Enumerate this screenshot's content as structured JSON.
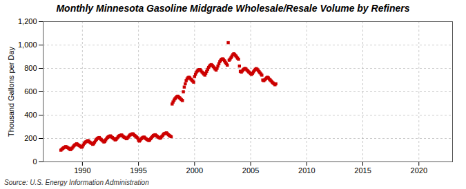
{
  "chart_data": {
    "type": "scatter",
    "title": "Monthly Minnesota Gasoline Midgrade Wholesale/Resale Volume by Refiners",
    "ylabel": "Thousand Gallons per Day",
    "source": "Source: U.S. Energy Information Administration",
    "color": "#cc0000",
    "marker": "square",
    "grid": true,
    "xlim": [
      1986.5,
      2023
    ],
    "ylim": [
      0,
      1200
    ],
    "xticks": [
      1990,
      1995,
      2000,
      2005,
      2010,
      2015,
      2020
    ],
    "yticks": [
      0,
      200,
      400,
      600,
      800,
      {
        "value": 1000,
        "label": "1,000"
      },
      {
        "value": 1200,
        "label": "1,200"
      }
    ],
    "x": [
      1988.08,
      1988.17,
      1988.25,
      1988.33,
      1988.42,
      1988.5,
      1988.58,
      1988.67,
      1988.75,
      1988.83,
      1988.92,
      1989.0,
      1989.08,
      1989.17,
      1989.25,
      1989.33,
      1989.42,
      1989.5,
      1989.58,
      1989.67,
      1989.75,
      1989.83,
      1989.92,
      1990.0,
      1990.08,
      1990.17,
      1990.25,
      1990.33,
      1990.42,
      1990.5,
      1990.58,
      1990.67,
      1990.75,
      1990.83,
      1990.92,
      1991.0,
      1991.08,
      1991.17,
      1991.25,
      1991.33,
      1991.42,
      1991.5,
      1991.58,
      1991.67,
      1991.75,
      1991.83,
      1991.92,
      1992.0,
      1992.08,
      1992.17,
      1992.25,
      1992.33,
      1992.42,
      1992.5,
      1992.58,
      1992.67,
      1992.75,
      1992.83,
      1992.92,
      1993.0,
      1993.08,
      1993.17,
      1993.25,
      1993.33,
      1993.42,
      1993.5,
      1993.58,
      1993.67,
      1993.75,
      1993.83,
      1993.92,
      1994.0,
      1994.08,
      1994.17,
      1994.25,
      1994.33,
      1994.42,
      1994.5,
      1994.58,
      1994.67,
      1994.75,
      1994.83,
      1994.92,
      1995.0,
      1995.08,
      1995.17,
      1995.25,
      1995.33,
      1995.42,
      1995.5,
      1995.58,
      1995.67,
      1995.75,
      1995.83,
      1995.92,
      1996.0,
      1996.08,
      1996.17,
      1996.25,
      1996.33,
      1996.42,
      1996.5,
      1996.58,
      1996.67,
      1996.75,
      1996.83,
      1996.92,
      1997.0,
      1997.08,
      1997.17,
      1997.25,
      1997.33,
      1997.42,
      1997.5,
      1997.58,
      1997.67,
      1997.75,
      1997.83,
      1997.92,
      1998.0,
      1998.08,
      1998.17,
      1998.25,
      1998.33,
      1998.42,
      1998.5,
      1998.58,
      1998.67,
      1998.75,
      1998.83,
      1998.92,
      1999.0,
      1999.08,
      1999.17,
      1999.25,
      1999.33,
      1999.42,
      1999.5,
      1999.58,
      1999.67,
      1999.75,
      1999.83,
      1999.92,
      2000.0,
      2000.08,
      2000.17,
      2000.25,
      2000.33,
      2000.42,
      2000.5,
      2000.58,
      2000.67,
      2000.75,
      2000.83,
      2000.92,
      2001.0,
      2001.08,
      2001.17,
      2001.25,
      2001.33,
      2001.42,
      2001.5,
      2001.58,
      2001.67,
      2001.75,
      2001.83,
      2001.92,
      2002.0,
      2002.08,
      2002.17,
      2002.25,
      2002.33,
      2002.42,
      2002.5,
      2002.58,
      2002.67,
      2002.75,
      2002.83,
      2002.92,
      2003.0,
      2003.08,
      2003.17,
      2003.25,
      2003.33,
      2003.42,
      2003.5,
      2003.58,
      2003.67,
      2003.75,
      2003.83,
      2003.92,
      2004.0,
      2004.08,
      2004.17,
      2004.25,
      2004.33,
      2004.42,
      2004.5,
      2004.58,
      2004.67,
      2004.75,
      2004.83,
      2004.92,
      2005.0,
      2005.08,
      2005.17,
      2005.25,
      2005.33,
      2005.42,
      2005.5,
      2005.58,
      2005.67,
      2005.75,
      2005.83,
      2005.92,
      2006.0,
      2006.08,
      2006.17,
      2006.25,
      2006.33,
      2006.42,
      2006.5,
      2006.58,
      2006.67,
      2006.75,
      2006.83,
      2006.92,
      2007.0,
      2007.08,
      2007.17,
      2007.25
    ],
    "values": [
      100,
      108,
      115,
      120,
      125,
      130,
      128,
      122,
      118,
      112,
      105,
      110,
      118,
      128,
      138,
      145,
      150,
      155,
      148,
      142,
      138,
      132,
      125,
      130,
      145,
      158,
      168,
      172,
      178,
      182,
      175,
      168,
      162,
      158,
      150,
      155,
      168,
      180,
      192,
      200,
      205,
      208,
      200,
      192,
      185,
      178,
      170,
      175,
      188,
      200,
      210,
      215,
      220,
      222,
      215,
      208,
      202,
      196,
      188,
      192,
      202,
      212,
      220,
      225,
      228,
      230,
      222,
      215,
      210,
      205,
      198,
      202,
      212,
      222,
      230,
      235,
      238,
      240,
      232,
      225,
      218,
      212,
      205,
      185,
      178,
      188,
      198,
      205,
      210,
      212,
      205,
      198,
      192,
      188,
      182,
      188,
      198,
      208,
      218,
      225,
      230,
      232,
      225,
      218,
      212,
      208,
      202,
      208,
      218,
      228,
      238,
      242,
      245,
      248,
      240,
      232,
      226,
      220,
      215,
      495,
      512,
      528,
      540,
      548,
      558,
      562,
      555,
      548,
      540,
      532,
      525,
      600,
      640,
      668,
      695,
      710,
      720,
      725,
      718,
      708,
      700,
      692,
      682,
      730,
      750,
      768,
      778,
      785,
      790,
      788,
      778,
      768,
      760,
      752,
      742,
      758,
      775,
      792,
      808,
      820,
      828,
      832,
      825,
      815,
      805,
      795,
      785,
      800,
      820,
      840,
      858,
      870,
      878,
      882,
      875,
      865,
      852,
      840,
      828,
      1020,
      870,
      880,
      892,
      905,
      918,
      925,
      918,
      908,
      898,
      888,
      878,
      820,
      775,
      768,
      778,
      788,
      795,
      800,
      795,
      785,
      778,
      770,
      762,
      755,
      748,
      758,
      770,
      782,
      792,
      798,
      792,
      782,
      772,
      762,
      752,
      742,
      700,
      695,
      702,
      710,
      718,
      725,
      718,
      708,
      700,
      692,
      682,
      675,
      668,
      660,
      668
    ]
  }
}
